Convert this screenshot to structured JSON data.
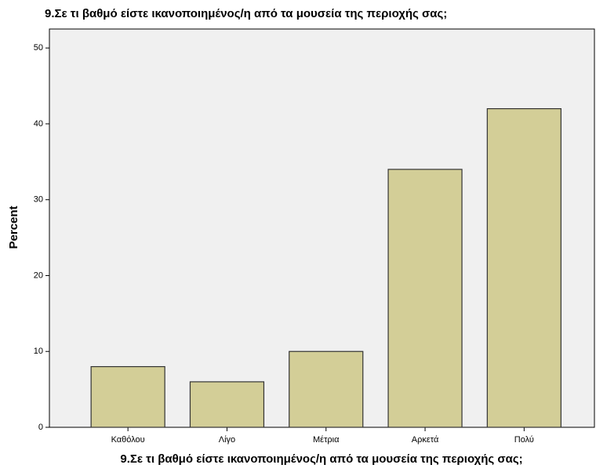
{
  "chart_data": {
    "type": "bar",
    "title": "9.Σε τι βαθμό είστε ικανοποιημένος/η από τα μουσεία της περιοχής σας;",
    "x_label": "9.Σε τι βαθμό είστε ικανοποιημένος/η από τα μουσεία της περιοχής σας;",
    "y_label": "Percent",
    "categories": [
      "Καθόλου",
      "Λίγο",
      "Μέτρια",
      "Αρκετά",
      "Πολύ"
    ],
    "values": [
      8,
      6,
      10,
      34,
      42
    ],
    "color": "#d3ce97",
    "ylim": [
      0,
      52.5
    ],
    "yticks": [
      0,
      10,
      20,
      30,
      40,
      50
    ],
    "grid": false
  }
}
